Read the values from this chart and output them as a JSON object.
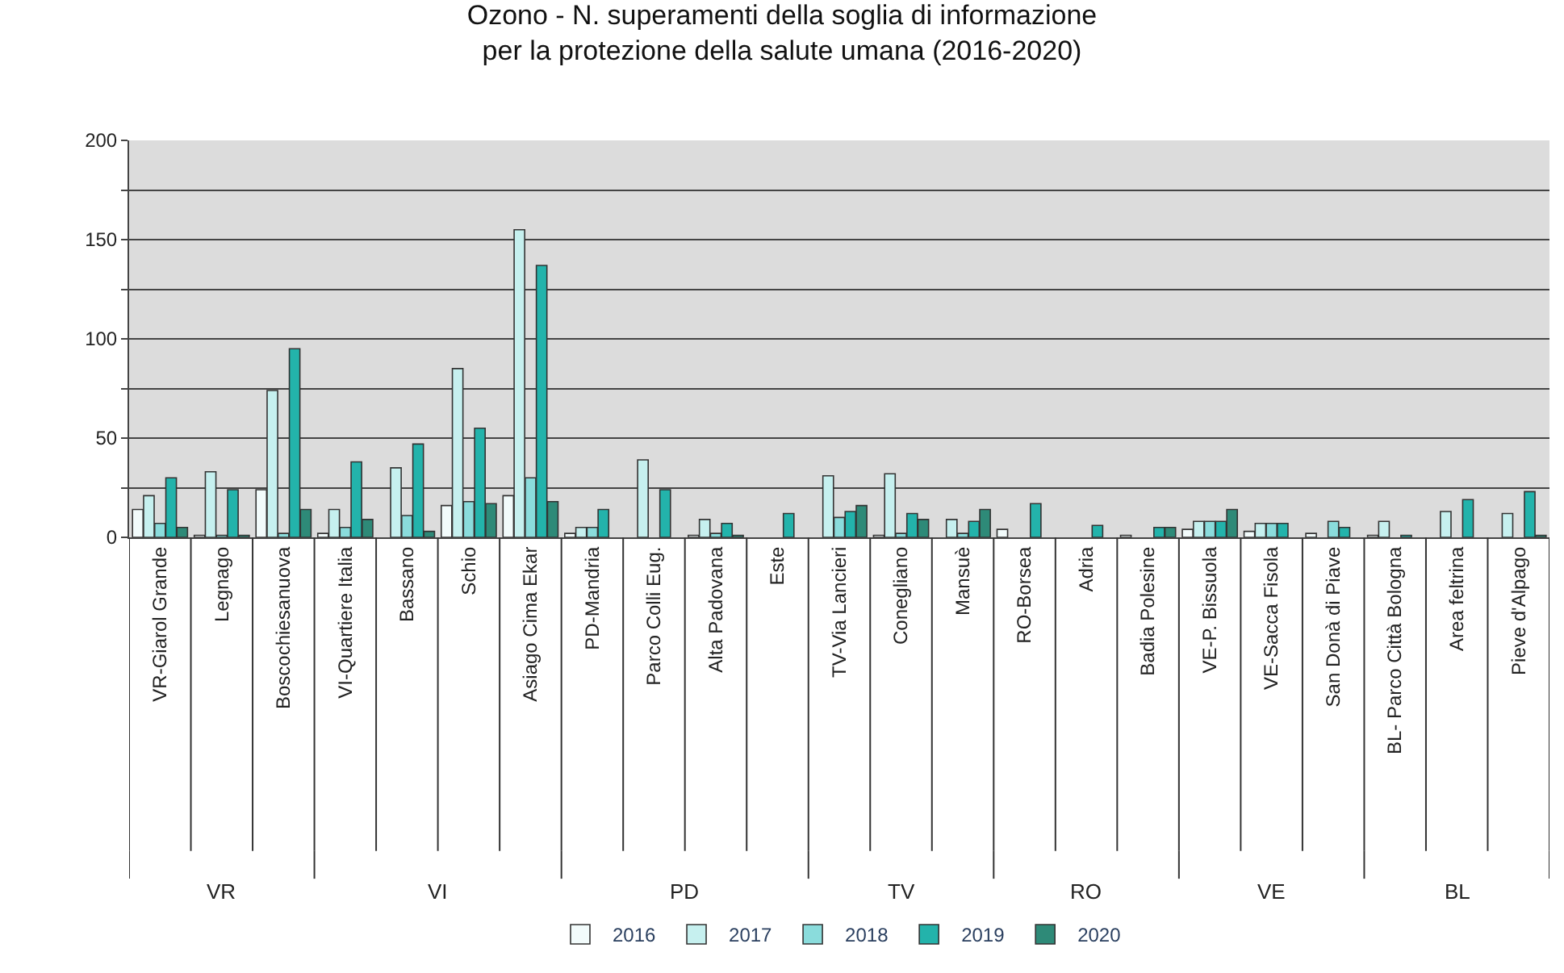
{
  "chart_data": {
    "type": "bar",
    "title": "Ozono - N. superamenti della soglia di informazione\nper la protezione della salute umana (2016-2020)",
    "categories": [
      "VR-Giarol Grande",
      "Legnago",
      "Boscochiesanuova",
      "VI-Quartiere Italia",
      "Bassano",
      "Schio",
      "Asiago Cima Ekar",
      "PD-Mandria",
      "Parco Colli Eug.",
      "Alta Padovana",
      "Este",
      "TV-Via Lancieri",
      "Conegliano",
      "Mansuè",
      "RO-Borsea",
      "Adria",
      "Badia Polesine",
      "VE-P. Bissuola",
      "VE-Sacca Fisola",
      "San Donà di Piave",
      "BL- Parco Città Bologna",
      "Area feltrina",
      "Pieve d'Alpago"
    ],
    "annotations": [
      "VR",
      "VI",
      "PD",
      "TV",
      "RO",
      "VE",
      "BL"
    ],
    "series": [
      {
        "name": "2016",
        "color": "#f2fbfb",
        "values": [
          14,
          1,
          24,
          2,
          0,
          16,
          21,
          2,
          0,
          1,
          0,
          0,
          1,
          0,
          4,
          0,
          1,
          4,
          3,
          2,
          1,
          0,
          0
        ]
      },
      {
        "name": "2017",
        "color": "#c6f0ef",
        "values": [
          21,
          33,
          74,
          14,
          35,
          85,
          155,
          5,
          39,
          9,
          0,
          31,
          32,
          9,
          0,
          0,
          0,
          8,
          7,
          0,
          8,
          13,
          12
        ]
      },
      {
        "name": "2018",
        "color": "#8adcdc",
        "values": [
          7,
          1,
          2,
          5,
          11,
          18,
          30,
          5,
          0,
          2,
          0,
          10,
          2,
          2,
          0,
          0,
          0,
          8,
          7,
          8,
          0,
          0,
          0
        ]
      },
      {
        "name": "2019",
        "color": "#23b3ab",
        "values": [
          30,
          24,
          95,
          38,
          47,
          55,
          137,
          14,
          24,
          7,
          12,
          13,
          12,
          8,
          17,
          6,
          5,
          8,
          7,
          5,
          1,
          19,
          23
        ]
      },
      {
        "name": "2020",
        "color": "#2e8a78",
        "values": [
          5,
          1,
          14,
          9,
          3,
          17,
          18,
          0,
          0,
          1,
          0,
          16,
          9,
          14,
          0,
          0,
          5,
          14,
          0,
          0,
          0,
          0,
          1
        ]
      }
    ],
    "ylim": [
      0,
      200
    ],
    "yticks": [
      0,
      {
        "value": 25,
        "label": null
      },
      50,
      {
        "value": 75,
        "label": null
      },
      100,
      {
        "value": 125,
        "label": null
      },
      150,
      {
        "value": 175,
        "label": null
      },
      200
    ],
    "grid": "y",
    "legend": "bottom"
  }
}
